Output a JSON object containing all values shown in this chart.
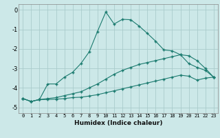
{
  "title": "",
  "xlabel": "Humidex (Indice chaleur)",
  "ylabel": "",
  "background_color": "#cce8e8",
  "grid_color": "#aacccc",
  "line_color": "#1a7a6e",
  "xlim": [
    -0.5,
    23.5
  ],
  "ylim": [
    -5.3,
    0.3
  ],
  "yticks": [
    0,
    -1,
    -2,
    -3,
    -4,
    -5
  ],
  "xticks": [
    0,
    1,
    2,
    3,
    4,
    5,
    6,
    7,
    8,
    9,
    10,
    11,
    12,
    13,
    14,
    15,
    16,
    17,
    18,
    19,
    20,
    21,
    22,
    23
  ],
  "series": [
    {
      "x": [
        0,
        1,
        2,
        3,
        4,
        5,
        6,
        7,
        8,
        9,
        10,
        11,
        12,
        13,
        14,
        15,
        16,
        17,
        18,
        19,
        20,
        21,
        22,
        23
      ],
      "y": [
        -4.55,
        -4.7,
        -4.6,
        -3.8,
        -3.8,
        -3.45,
        -3.2,
        -2.75,
        -2.15,
        -1.1,
        -0.1,
        -0.72,
        -0.48,
        -0.5,
        -0.82,
        -1.2,
        -1.6,
        -2.05,
        -2.1,
        -2.3,
        -2.75,
        -2.95,
        -3.1,
        -3.45
      ]
    },
    {
      "x": [
        0,
        1,
        2,
        3,
        4,
        5,
        6,
        7,
        8,
        9,
        10,
        11,
        12,
        13,
        14,
        15,
        16,
        17,
        18,
        19,
        20,
        21,
        22,
        23
      ],
      "y": [
        -4.55,
        -4.7,
        -4.6,
        -4.55,
        -4.5,
        -4.4,
        -4.3,
        -4.2,
        -4.0,
        -3.8,
        -3.55,
        -3.3,
        -3.1,
        -2.95,
        -2.8,
        -2.7,
        -2.6,
        -2.5,
        -2.4,
        -2.3,
        -2.35,
        -2.6,
        -3.0,
        -3.45
      ]
    },
    {
      "x": [
        0,
        1,
        2,
        3,
        4,
        5,
        6,
        7,
        8,
        9,
        10,
        11,
        12,
        13,
        14,
        15,
        16,
        17,
        18,
        19,
        20,
        21,
        22,
        23
      ],
      "y": [
        -4.55,
        -4.7,
        -4.6,
        -4.6,
        -4.58,
        -4.55,
        -4.5,
        -4.48,
        -4.42,
        -4.35,
        -4.25,
        -4.15,
        -4.05,
        -3.95,
        -3.85,
        -3.75,
        -3.65,
        -3.55,
        -3.45,
        -3.35,
        -3.4,
        -3.6,
        -3.5,
        -3.45
      ]
    }
  ]
}
